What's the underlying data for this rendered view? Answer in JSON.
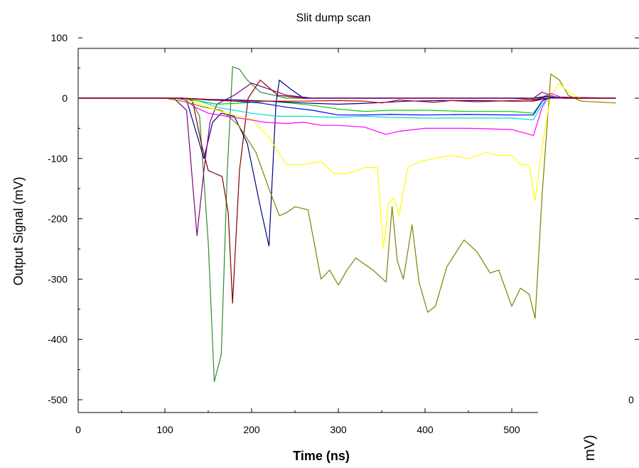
{
  "chart_data": {
    "type": "line",
    "title": "Slit dump scan",
    "xlabel": "Time (ns)",
    "ylabel": "Output Signal (mV)",
    "xlim": [
      0,
      560
    ],
    "ylim": [
      -525,
      100
    ],
    "xticks": [
      0,
      100,
      200,
      300,
      400,
      500
    ],
    "yticks": [
      100,
      0,
      -100,
      -200,
      -300,
      -400,
      -500
    ],
    "grid": false,
    "legend": "none",
    "series": [
      {
        "color": "#2e8b2e",
        "points": [
          [
            0,
            0
          ],
          [
            110,
            0
          ],
          [
            130,
            -3
          ],
          [
            140,
            -30
          ],
          [
            150,
            -240
          ],
          [
            157,
            -470
          ],
          [
            165,
            -425
          ],
          [
            172,
            -120
          ],
          [
            178,
            52
          ],
          [
            186,
            48
          ],
          [
            195,
            30
          ],
          [
            210,
            10
          ],
          [
            240,
            0
          ],
          [
            300,
            0
          ],
          [
            400,
            0
          ],
          [
            500,
            0
          ],
          [
            520,
            0
          ],
          [
            530,
            -3
          ],
          [
            540,
            5
          ],
          [
            560,
            0
          ],
          [
            620,
            0
          ]
        ]
      },
      {
        "color": "#800000",
        "points": [
          [
            0,
            0
          ],
          [
            115,
            0
          ],
          [
            132,
            -5
          ],
          [
            142,
            -75
          ],
          [
            150,
            -120
          ],
          [
            158,
            -125
          ],
          [
            166,
            -130
          ],
          [
            173,
            -190
          ],
          [
            178,
            -340
          ],
          [
            186,
            -120
          ],
          [
            196,
            0
          ],
          [
            210,
            30
          ],
          [
            230,
            5
          ],
          [
            260,
            0
          ],
          [
            300,
            0
          ],
          [
            350,
            0
          ],
          [
            400,
            0
          ],
          [
            450,
            0
          ],
          [
            500,
            0
          ],
          [
            525,
            -3
          ],
          [
            540,
            3
          ],
          [
            560,
            0
          ],
          [
            620,
            0
          ]
        ]
      },
      {
        "color": "#000080",
        "points": [
          [
            0,
            0
          ],
          [
            115,
            0
          ],
          [
            125,
            -3
          ],
          [
            145,
            -100
          ],
          [
            155,
            -40
          ],
          [
            165,
            -25
          ],
          [
            180,
            -30
          ],
          [
            195,
            -75
          ],
          [
            210,
            -180
          ],
          [
            220,
            -245
          ],
          [
            228,
            -10
          ],
          [
            232,
            30
          ],
          [
            245,
            15
          ],
          [
            260,
            0
          ],
          [
            300,
            0
          ],
          [
            350,
            0
          ],
          [
            400,
            0
          ],
          [
            450,
            0
          ],
          [
            500,
            0
          ],
          [
            525,
            0
          ],
          [
            540,
            3
          ],
          [
            560,
            0
          ],
          [
            620,
            0
          ]
        ]
      },
      {
        "color": "#800080",
        "points": [
          [
            0,
            0
          ],
          [
            110,
            0
          ],
          [
            125,
            -20
          ],
          [
            137,
            -228
          ],
          [
            145,
            -120
          ],
          [
            152,
            -40
          ],
          [
            160,
            -10
          ],
          [
            180,
            5
          ],
          [
            200,
            25
          ],
          [
            220,
            15
          ],
          [
            240,
            5
          ],
          [
            270,
            0
          ],
          [
            300,
            0
          ],
          [
            400,
            0
          ],
          [
            500,
            0
          ],
          [
            525,
            0
          ],
          [
            535,
            10
          ],
          [
            550,
            2
          ],
          [
            620,
            0
          ]
        ]
      },
      {
        "color": "#808000",
        "points": [
          [
            0,
            0
          ],
          [
            100,
            0
          ],
          [
            120,
            -5
          ],
          [
            145,
            -15
          ],
          [
            165,
            -20
          ],
          [
            185,
            -45
          ],
          [
            205,
            -90
          ],
          [
            220,
            -150
          ],
          [
            232,
            -195
          ],
          [
            240,
            -190
          ],
          [
            250,
            -180
          ],
          [
            265,
            -185
          ],
          [
            280,
            -300
          ],
          [
            290,
            -285
          ],
          [
            300,
            -310
          ],
          [
            310,
            -285
          ],
          [
            320,
            -265
          ],
          [
            340,
            -285
          ],
          [
            355,
            -305
          ],
          [
            362,
            -180
          ],
          [
            368,
            -270
          ],
          [
            375,
            -300
          ],
          [
            385,
            -210
          ],
          [
            393,
            -305
          ],
          [
            403,
            -355
          ],
          [
            412,
            -345
          ],
          [
            425,
            -280
          ],
          [
            445,
            -235
          ],
          [
            460,
            -255
          ],
          [
            475,
            -290
          ],
          [
            485,
            -285
          ],
          [
            500,
            -345
          ],
          [
            510,
            -315
          ],
          [
            520,
            -325
          ],
          [
            527,
            -365
          ],
          [
            535,
            -160
          ],
          [
            545,
            40
          ],
          [
            555,
            30
          ],
          [
            565,
            5
          ],
          [
            580,
            -5
          ],
          [
            620,
            -8
          ]
        ]
      },
      {
        "color": "#ffff00",
        "points": [
          [
            0,
            0
          ],
          [
            120,
            0
          ],
          [
            140,
            -10
          ],
          [
            170,
            -25
          ],
          [
            200,
            -35
          ],
          [
            220,
            -65
          ],
          [
            240,
            -110
          ],
          [
            260,
            -110
          ],
          [
            280,
            -105
          ],
          [
            295,
            -125
          ],
          [
            310,
            -125
          ],
          [
            330,
            -115
          ],
          [
            345,
            -115
          ],
          [
            352,
            -250
          ],
          [
            358,
            -175
          ],
          [
            364,
            -165
          ],
          [
            370,
            -195
          ],
          [
            380,
            -115
          ],
          [
            395,
            -105
          ],
          [
            410,
            -100
          ],
          [
            430,
            -95
          ],
          [
            450,
            -100
          ],
          [
            470,
            -90
          ],
          [
            485,
            -95
          ],
          [
            500,
            -95
          ],
          [
            510,
            -110
          ],
          [
            520,
            -110
          ],
          [
            527,
            -170
          ],
          [
            535,
            -80
          ],
          [
            545,
            5
          ],
          [
            555,
            25
          ],
          [
            565,
            10
          ],
          [
            580,
            0
          ],
          [
            620,
            0
          ]
        ]
      },
      {
        "color": "#ff00ff",
        "points": [
          [
            0,
            0
          ],
          [
            120,
            0
          ],
          [
            135,
            -15
          ],
          [
            150,
            -25
          ],
          [
            170,
            -30
          ],
          [
            195,
            -35
          ],
          [
            215,
            -40
          ],
          [
            240,
            -42
          ],
          [
            260,
            -40
          ],
          [
            280,
            -45
          ],
          [
            300,
            -45
          ],
          [
            330,
            -48
          ],
          [
            355,
            -60
          ],
          [
            370,
            -55
          ],
          [
            400,
            -50
          ],
          [
            450,
            -50
          ],
          [
            500,
            -52
          ],
          [
            525,
            -62
          ],
          [
            535,
            -15
          ],
          [
            545,
            8
          ],
          [
            560,
            0
          ],
          [
            620,
            0
          ]
        ]
      },
      {
        "color": "#00dddd",
        "points": [
          [
            0,
            0
          ],
          [
            120,
            0
          ],
          [
            140,
            -5
          ],
          [
            160,
            -15
          ],
          [
            180,
            -20
          ],
          [
            200,
            -25
          ],
          [
            230,
            -30
          ],
          [
            260,
            -30
          ],
          [
            300,
            -32
          ],
          [
            330,
            -30
          ],
          [
            360,
            -32
          ],
          [
            400,
            -33
          ],
          [
            450,
            -33
          ],
          [
            500,
            -33
          ],
          [
            525,
            -36
          ],
          [
            535,
            -10
          ],
          [
            545,
            3
          ],
          [
            560,
            0
          ],
          [
            620,
            0
          ]
        ]
      },
      {
        "color": "#00cc00",
        "points": [
          [
            0,
            0
          ],
          [
            120,
            0
          ],
          [
            140,
            -5
          ],
          [
            160,
            -10
          ],
          [
            190,
            -8
          ],
          [
            220,
            -5
          ],
          [
            245,
            -8
          ],
          [
            270,
            -12
          ],
          [
            300,
            -18
          ],
          [
            330,
            -22
          ],
          [
            360,
            -20
          ],
          [
            400,
            -20
          ],
          [
            450,
            -22
          ],
          [
            500,
            -22
          ],
          [
            525,
            -25
          ],
          [
            535,
            -5
          ],
          [
            545,
            2
          ],
          [
            560,
            0
          ],
          [
            620,
            0
          ]
        ]
      },
      {
        "color": "#0000ff",
        "points": [
          [
            0,
            0
          ],
          [
            120,
            0
          ],
          [
            150,
            -3
          ],
          [
            180,
            -5
          ],
          [
            210,
            -8
          ],
          [
            240,
            -15
          ],
          [
            270,
            -20
          ],
          [
            300,
            -28
          ],
          [
            330,
            -28
          ],
          [
            360,
            -27
          ],
          [
            400,
            -28
          ],
          [
            450,
            -27
          ],
          [
            500,
            -28
          ],
          [
            525,
            -28
          ],
          [
            535,
            -5
          ],
          [
            545,
            2
          ],
          [
            560,
            0
          ],
          [
            620,
            0
          ]
        ]
      },
      {
        "color": "#00008b",
        "points": [
          [
            0,
            0
          ],
          [
            120,
            0
          ],
          [
            150,
            -2
          ],
          [
            180,
            -3
          ],
          [
            220,
            -5
          ],
          [
            260,
            -8
          ],
          [
            300,
            -10
          ],
          [
            340,
            -8
          ],
          [
            380,
            -5
          ],
          [
            420,
            -4
          ],
          [
            460,
            -4
          ],
          [
            500,
            -5
          ],
          [
            525,
            -5
          ],
          [
            535,
            -2
          ],
          [
            545,
            1
          ],
          [
            560,
            0
          ],
          [
            620,
            0
          ]
        ]
      },
      {
        "color": "#cc0000",
        "points": [
          [
            0,
            0
          ],
          [
            120,
            0
          ],
          [
            150,
            -2
          ],
          [
            180,
            -5
          ],
          [
            220,
            -5
          ],
          [
            260,
            -5
          ],
          [
            300,
            -4
          ],
          [
            330,
            -5
          ],
          [
            350,
            -8
          ],
          [
            370,
            -3
          ],
          [
            390,
            -5
          ],
          [
            410,
            -7
          ],
          [
            430,
            -4
          ],
          [
            460,
            -6
          ],
          [
            500,
            -4
          ],
          [
            525,
            -5
          ],
          [
            535,
            0
          ],
          [
            560,
            0
          ],
          [
            620,
            0
          ]
        ]
      }
    ]
  },
  "overlay": {
    "right_tick_label": "0",
    "right_axis_fragment": "mV)"
  }
}
